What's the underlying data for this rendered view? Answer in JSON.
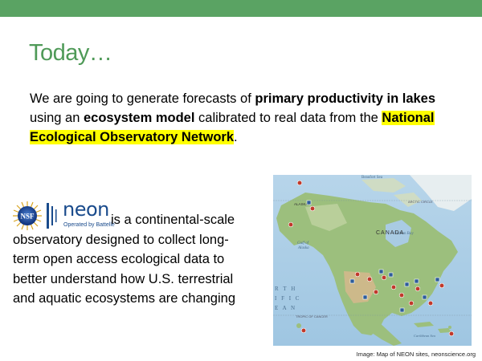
{
  "slide": {
    "title": "Today…",
    "intro": {
      "part1": "We are going to generate forecasts of ",
      "bold1": "primary productivity in lakes",
      "part2": " using an ",
      "bold2": "ecosystem model",
      "part3": " calibrated to real data from the ",
      "highlight": "National Ecological Observatory Network",
      "part4": "."
    },
    "logos": {
      "nsf_text": "NSF",
      "neon_text": "neon",
      "neon_sub": "Operated by Battelle"
    },
    "description_lines": [
      "is a continental-scale",
      "observatory designed to collect long-",
      "term open access ecological data to",
      "better understand how U.S. terrestrial",
      "and aquatic ecosystems are changing"
    ],
    "map": {
      "labels": {
        "canada": "CANADA",
        "alaska": "ALASKA",
        "gulf_alaska_1": "Gulf of",
        "gulf_alaska_2": "Alaska",
        "pacific_1": "R T H",
        "pacific_2": "I F I C",
        "pacific_3": "E A N",
        "beaufort": "Beaufort Sea",
        "hudson": "Hudson Bay",
        "cancer": "TROPIC OF CANCER",
        "arctic": "ARCTIC CIRCLE",
        "caribbean": "Caribbean Sea"
      }
    },
    "credit": "Image: Map of NEON sites, neonscience.org"
  },
  "colors": {
    "top_bar": "#5aa363",
    "title": "#4f9a58",
    "highlight": "#ffff00",
    "neon_blue": "#1a4b8c"
  }
}
